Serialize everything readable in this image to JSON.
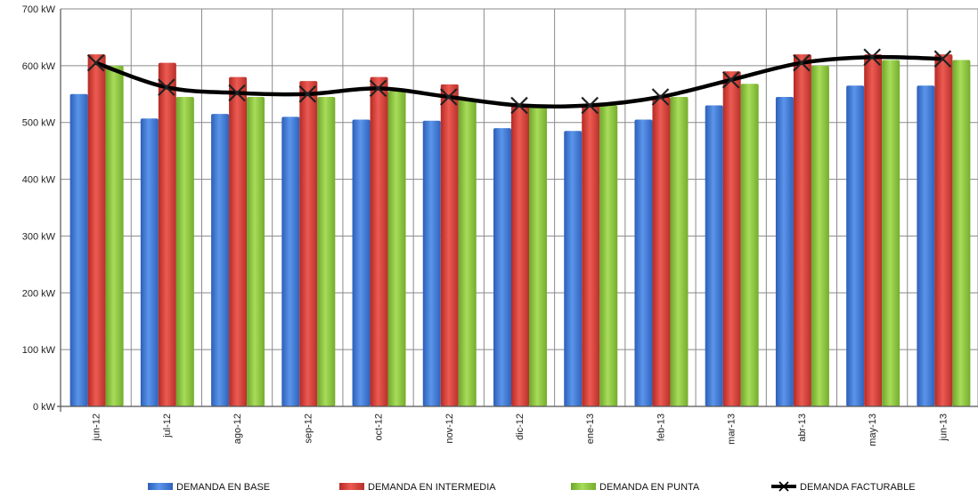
{
  "chart_data": {
    "type": "bar",
    "title": "",
    "xlabel": "",
    "ylabel": "",
    "ylim": [
      0,
      700
    ],
    "y_ticks": [
      0,
      100,
      200,
      300,
      400,
      500,
      600,
      700
    ],
    "y_tick_labels": [
      "0 kW",
      "100 kW",
      "200 kW",
      "300 kW",
      "400 kW",
      "500 kW",
      "600 kW",
      "700 kW"
    ],
    "categories": [
      "jun-12",
      "jul-12",
      "ago-12",
      "sep-12",
      "oct-12",
      "nov-12",
      "dic-12",
      "ene-13",
      "feb-13",
      "mar-13",
      "abr-13",
      "may-13",
      "jun-13"
    ],
    "grid": true,
    "legend_position": "bottom",
    "series": [
      {
        "name": "DEMANDA EN BASE",
        "kind": "bar",
        "color": "#3e78d8",
        "values": [
          550,
          507,
          515,
          510,
          505,
          503,
          490,
          485,
          505,
          530,
          545,
          565,
          565
        ]
      },
      {
        "name": "DEMANDA EN INTERMEDIA",
        "kind": "bar",
        "color": "#d83b34",
        "values": [
          620,
          605,
          580,
          573,
          580,
          567,
          530,
          530,
          545,
          590,
          620,
          620,
          620
        ]
      },
      {
        "name": "DEMANDA EN PUNTA",
        "kind": "bar",
        "color": "#8cc43c",
        "values": [
          600,
          545,
          545,
          545,
          555,
          540,
          528,
          530,
          545,
          568,
          600,
          610,
          610
        ]
      },
      {
        "name": "DEMANDA FACTURABLE",
        "kind": "line",
        "color": "#000000",
        "values": [
          605,
          562,
          552,
          550,
          560,
          545,
          530,
          530,
          545,
          575,
          605,
          615,
          612
        ]
      }
    ]
  }
}
